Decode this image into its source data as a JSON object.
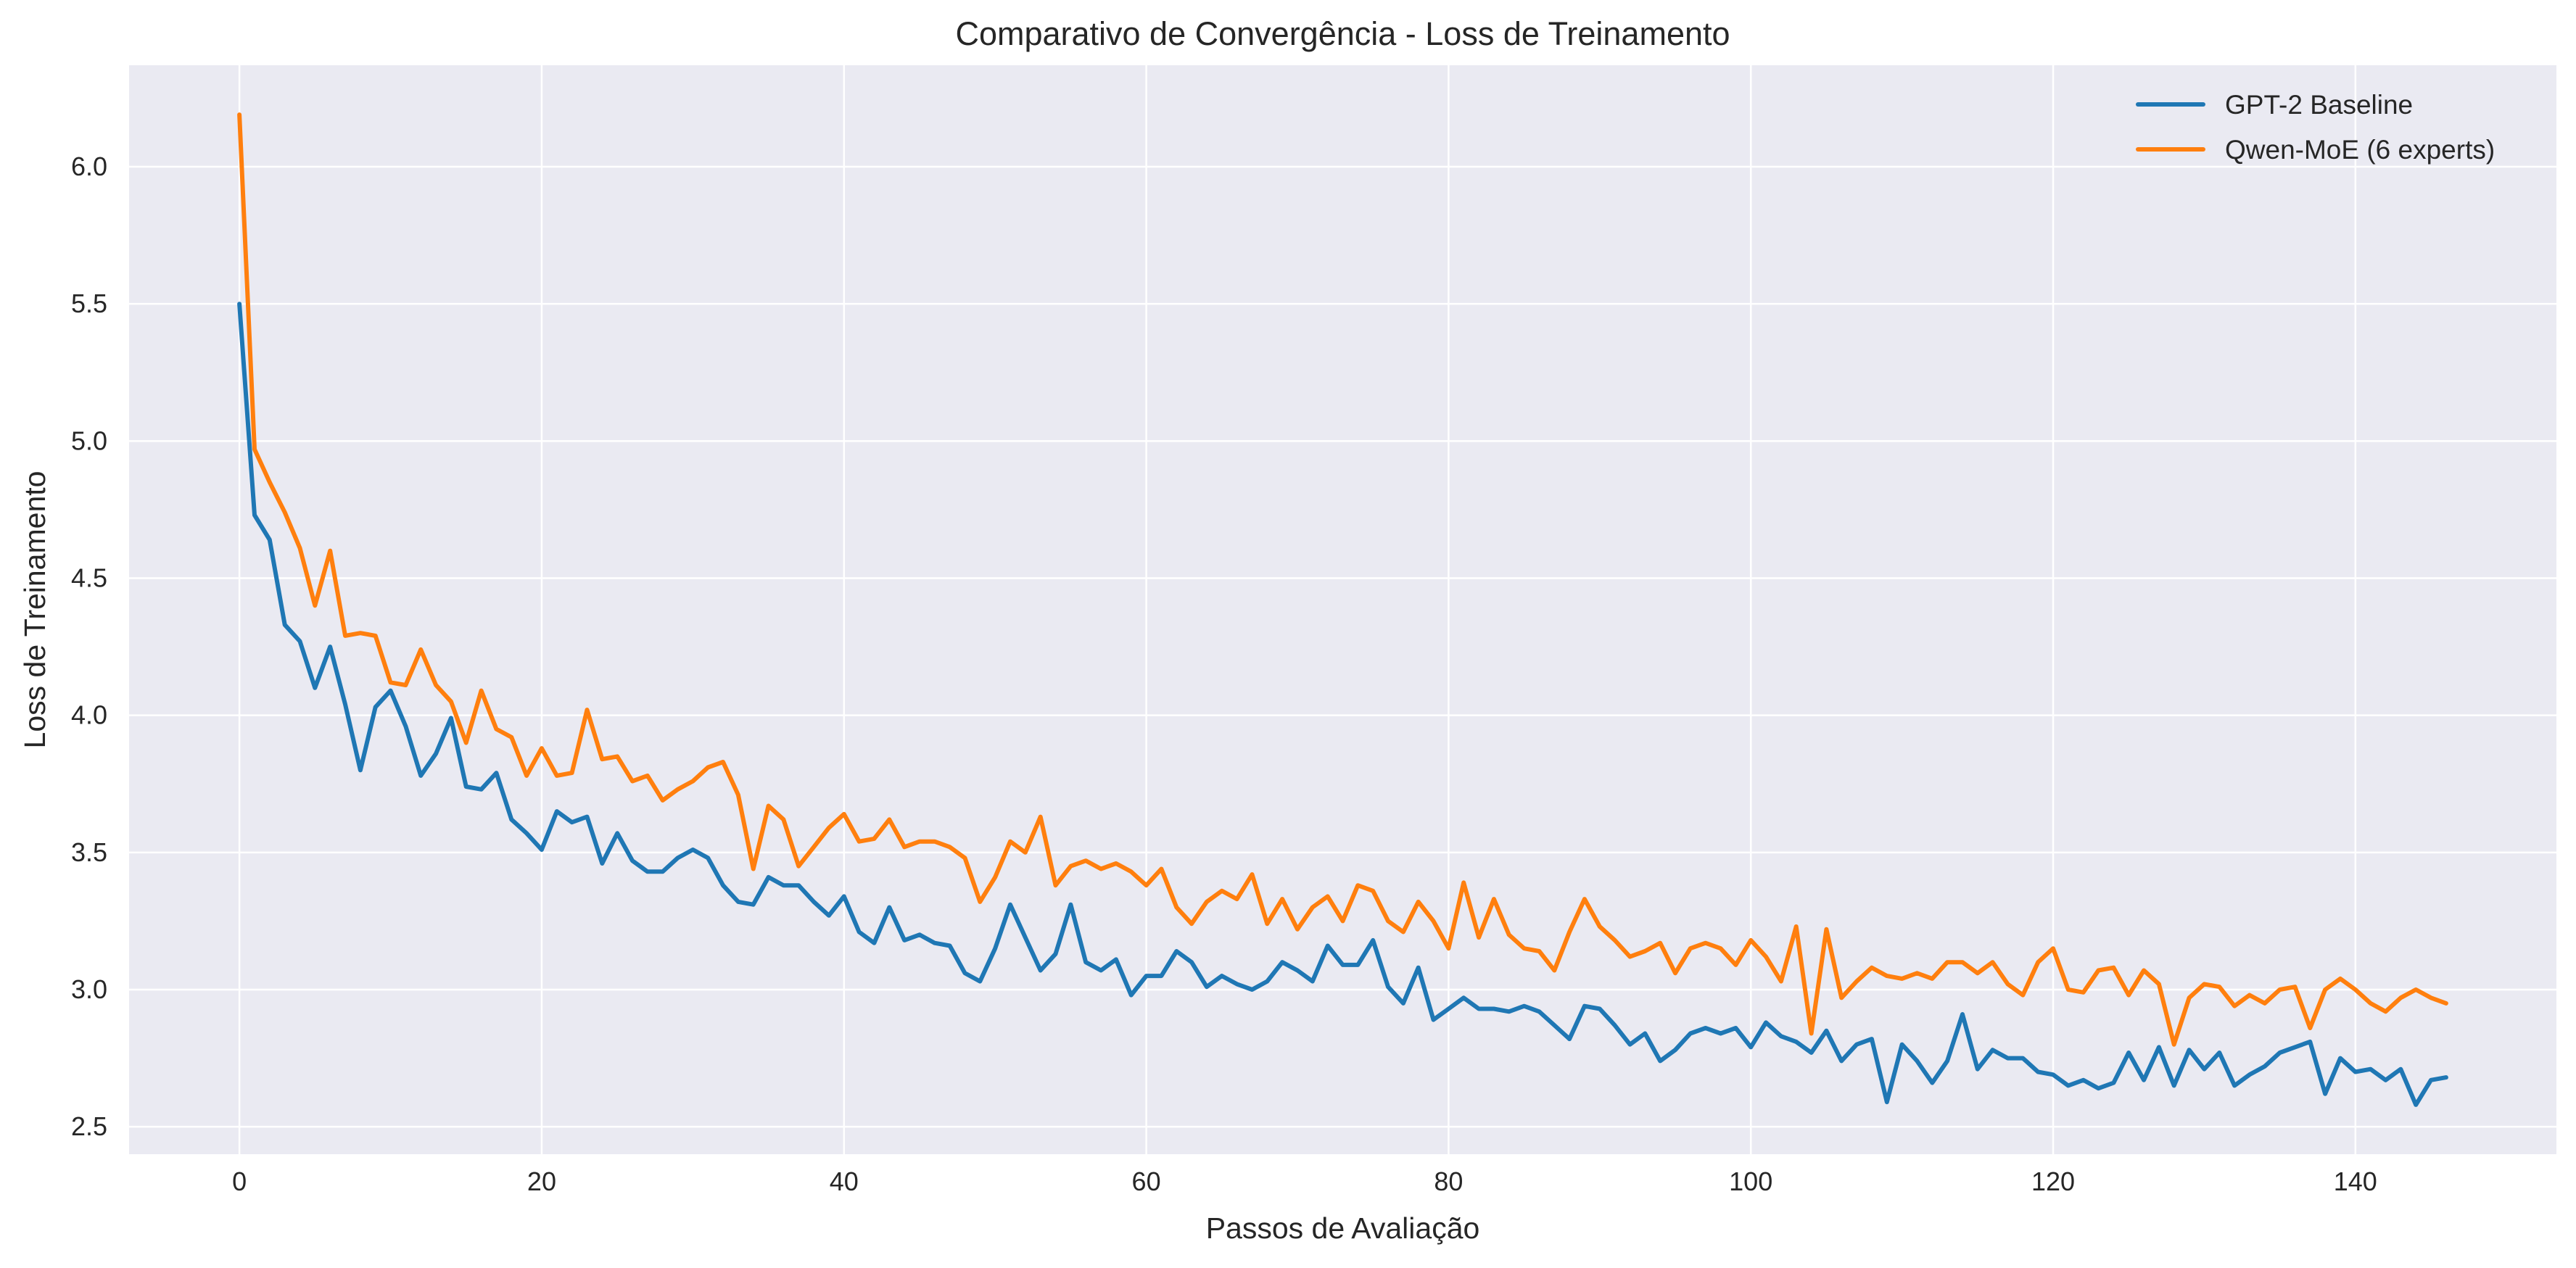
{
  "chart_data": {
    "type": "line",
    "title": "Comparativo de Convergência - Loss de Treinamento",
    "xlabel": "Passos de Avaliação",
    "ylabel": "Loss de Treinamento",
    "xlim": [
      -7.3,
      153.3
    ],
    "ylim": [
      2.4,
      6.37
    ],
    "xticks": [
      0,
      20,
      40,
      60,
      80,
      100,
      120,
      140
    ],
    "xtick_labels": [
      "0",
      "20",
      "40",
      "60",
      "80",
      "100",
      "120",
      "140"
    ],
    "yticks": [
      2.5,
      3.0,
      3.5,
      4.0,
      4.5,
      5.0,
      5.5,
      6.0
    ],
    "ytick_labels": [
      "2.5",
      "3.0",
      "3.5",
      "4.0",
      "4.5",
      "5.0",
      "5.5",
      "6.0"
    ],
    "grid": true,
    "legend_position": "top-right",
    "colors": {
      "background": "#eaeaf2",
      "grid": "#ffffff"
    },
    "series": [
      {
        "name": "GPT-2 Baseline",
        "color": "#1f77b4",
        "x_start": 0,
        "values": [
          5.5,
          4.73,
          4.64,
          4.33,
          4.27,
          4.1,
          4.25,
          4.04,
          3.8,
          4.03,
          4.09,
          3.96,
          3.78,
          3.86,
          3.99,
          3.74,
          3.73,
          3.79,
          3.62,
          3.57,
          3.51,
          3.65,
          3.61,
          3.63,
          3.46,
          3.57,
          3.47,
          3.43,
          3.43,
          3.48,
          3.51,
          3.48,
          3.38,
          3.32,
          3.31,
          3.41,
          3.38,
          3.38,
          3.32,
          3.27,
          3.34,
          3.21,
          3.17,
          3.3,
          3.18,
          3.2,
          3.17,
          3.16,
          3.06,
          3.03,
          3.15,
          3.31,
          3.19,
          3.07,
          3.13,
          3.31,
          3.1,
          3.07,
          3.11,
          2.98,
          3.05,
          3.05,
          3.14,
          3.1,
          3.01,
          3.05,
          3.02,
          3.0,
          3.03,
          3.1,
          3.07,
          3.03,
          3.16,
          3.09,
          3.09,
          3.18,
          3.01,
          2.95,
          3.08,
          2.89,
          2.93,
          2.97,
          2.93,
          2.93,
          2.92,
          2.94,
          2.92,
          2.87,
          2.82,
          2.94,
          2.93,
          2.87,
          2.8,
          2.84,
          2.74,
          2.78,
          2.84,
          2.86,
          2.84,
          2.86,
          2.79,
          2.88,
          2.83,
          2.81,
          2.77,
          2.85,
          2.74,
          2.8,
          2.82,
          2.59,
          2.8,
          2.74,
          2.66,
          2.74,
          2.91,
          2.71,
          2.78,
          2.75,
          2.75,
          2.7,
          2.69,
          2.65,
          2.67,
          2.64,
          2.66,
          2.77,
          2.67,
          2.79,
          2.65,
          2.78,
          2.71,
          2.77,
          2.65,
          2.69,
          2.72,
          2.77,
          2.79,
          2.81,
          2.62,
          2.75,
          2.7,
          2.71,
          2.67,
          2.71,
          2.58,
          2.67,
          2.68
        ]
      },
      {
        "name": "Qwen-MoE (6 experts)",
        "color": "#ff7f0e",
        "x_start": 0,
        "values": [
          6.19,
          4.97,
          4.85,
          4.74,
          4.61,
          4.4,
          4.6,
          4.29,
          4.3,
          4.29,
          4.12,
          4.11,
          4.24,
          4.11,
          4.05,
          3.9,
          4.09,
          3.95,
          3.92,
          3.78,
          3.88,
          3.78,
          3.79,
          4.02,
          3.84,
          3.85,
          3.76,
          3.78,
          3.69,
          3.73,
          3.76,
          3.81,
          3.83,
          3.71,
          3.44,
          3.67,
          3.62,
          3.45,
          3.52,
          3.59,
          3.64,
          3.54,
          3.55,
          3.62,
          3.52,
          3.54,
          3.54,
          3.52,
          3.48,
          3.32,
          3.41,
          3.54,
          3.5,
          3.63,
          3.38,
          3.45,
          3.47,
          3.44,
          3.46,
          3.43,
          3.38,
          3.44,
          3.3,
          3.24,
          3.32,
          3.36,
          3.33,
          3.42,
          3.24,
          3.33,
          3.22,
          3.3,
          3.34,
          3.25,
          3.38,
          3.36,
          3.25,
          3.21,
          3.32,
          3.25,
          3.15,
          3.39,
          3.19,
          3.33,
          3.2,
          3.15,
          3.14,
          3.07,
          3.21,
          3.33,
          3.23,
          3.18,
          3.12,
          3.14,
          3.17,
          3.06,
          3.15,
          3.17,
          3.15,
          3.09,
          3.18,
          3.12,
          3.03,
          3.23,
          2.84,
          3.22,
          2.97,
          3.03,
          3.08,
          3.05,
          3.04,
          3.06,
          3.04,
          3.1,
          3.1,
          3.06,
          3.1,
          3.02,
          2.98,
          3.1,
          3.15,
          3.0,
          2.99,
          3.07,
          3.08,
          2.98,
          3.07,
          3.02,
          2.8,
          2.97,
          3.02,
          3.01,
          2.94,
          2.98,
          2.95,
          3.0,
          3.01,
          2.86,
          3.0,
          3.04,
          3.0,
          2.95,
          2.92,
          2.97,
          3.0,
          2.97,
          2.95
        ]
      }
    ]
  }
}
